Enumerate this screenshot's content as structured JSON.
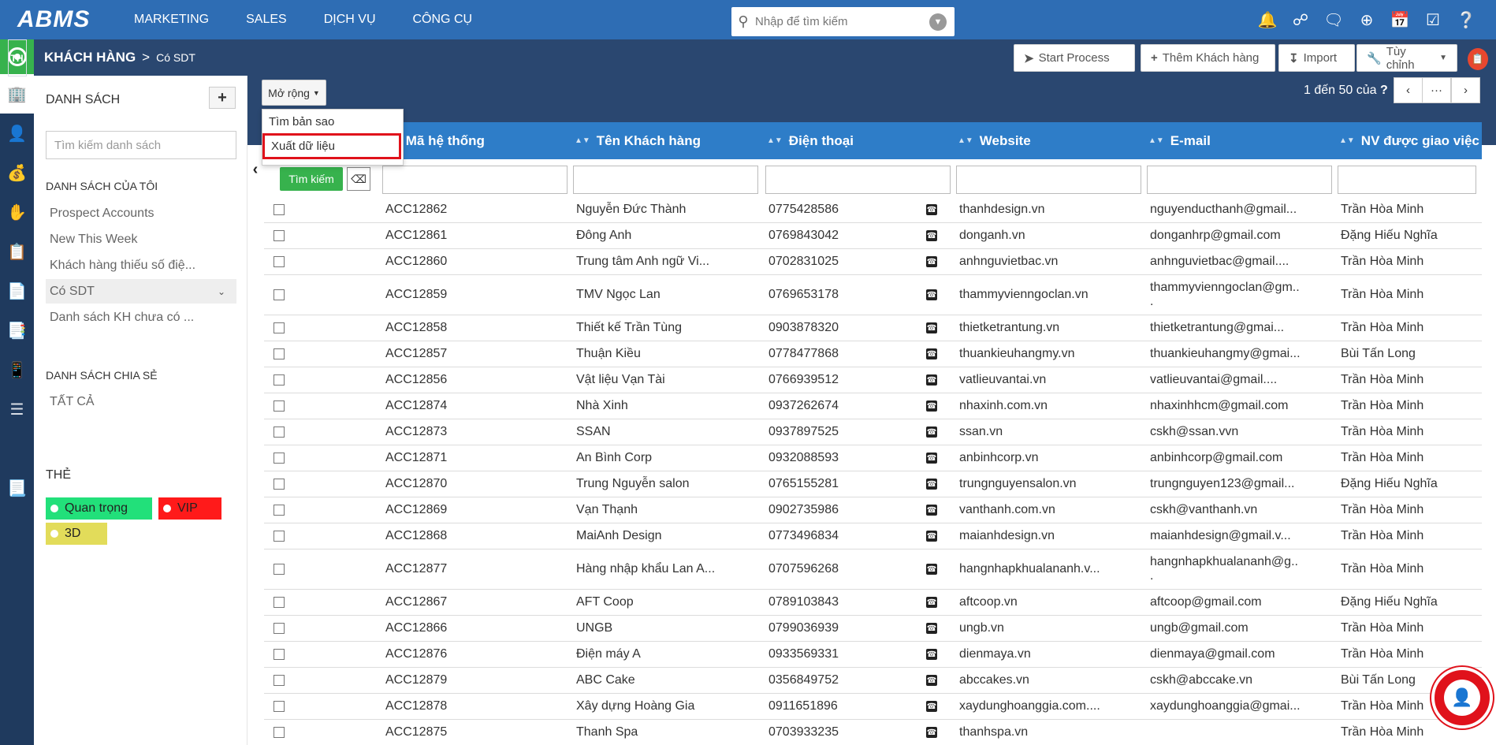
{
  "app": {
    "logo": "ABMS"
  },
  "nav": [
    "MARKETING",
    "SALES",
    "DỊCH VỤ",
    "CÔNG CỤ"
  ],
  "search": {
    "placeholder": "Nhập để tìm kiếm"
  },
  "top_icons": [
    "bell-icon",
    "network-icon",
    "chat-icon",
    "plus-icon",
    "calendar-icon",
    "check-square-icon",
    "help-icon"
  ],
  "breadcrumb": {
    "section": "KHÁCH HÀNG",
    "separator": ">",
    "current": "Có SDT"
  },
  "header_buttons": {
    "start_process": "Start Process",
    "add_customer": "Thêm Khách hàng",
    "import": "Import",
    "customize": "Tùy chỉnh"
  },
  "list_pane": {
    "title": "DANH SÁCH",
    "add": "+",
    "search_placeholder": "Tìm kiếm danh sách",
    "my_lists_heading": "DANH SÁCH CỦA TÔI",
    "my_lists": [
      "Prospect Accounts",
      "New This Week",
      "Khách hàng thiếu số điệ...",
      "Có SDT",
      "Danh sách KH chưa có ..."
    ],
    "shared_heading": "DANH SÁCH CHIA SẺ",
    "shared": [
      "TẤT CẢ"
    ],
    "tags_heading": "THẺ",
    "tags": [
      {
        "label": "Quan trọng",
        "color": "#22e07a"
      },
      {
        "label": "VIP",
        "color": "#ff1a1a"
      },
      {
        "label": "3D",
        "color": "#e2dc5a"
      }
    ]
  },
  "toolbar": {
    "expand": "Mở rộng",
    "dropdown": [
      "Tìm bản sao",
      "Xuất dữ liệu"
    ],
    "pager_text": "1 đến 50  của",
    "pager_q": "?",
    "pager_more": "···"
  },
  "table": {
    "headers": [
      "Mã hệ thống",
      "Tên Khách hàng",
      "Điện thoại",
      "Website",
      "E-mail",
      "NV được giao việc"
    ],
    "search_button": "Tìm kiếm",
    "rows": [
      {
        "code": "ACC12862",
        "name": "Nguyễn Đức Thành",
        "phone": "0775428586",
        "web": "thanhdesign.vn",
        "email": "nguyenducthanh@gmail...",
        "owner": "Trần Hòa Minh"
      },
      {
        "code": "ACC12861",
        "name": "Đông Anh",
        "phone": "0769843042",
        "web": "donganh.vn",
        "email": "donganhrp@gmail.com",
        "owner": "Đặng Hiếu Nghĩa"
      },
      {
        "code": "ACC12860",
        "name": "Trung tâm Anh ngữ Vi...",
        "phone": "0702831025",
        "web": "anhnguvietbac.vn",
        "email": "anhnguvietbac@gmail....",
        "owner": "Trần Hòa Minh"
      },
      {
        "code": "ACC12859",
        "name": "TMV Ngọc Lan",
        "phone": "0769653178",
        "web": "thammyvienngoclan.vn",
        "email": "thammyvienngoclan@gm..",
        "email2": ".",
        "owner": "Trần Hòa Minh"
      },
      {
        "code": "ACC12858",
        "name": "Thiết kế Trần Tùng",
        "phone": "0903878320",
        "web": "thietketrantung.vn",
        "email": "thietketrantung@gmai...",
        "owner": "Trần Hòa Minh"
      },
      {
        "code": "ACC12857",
        "name": "Thuận Kiều",
        "phone": "0778477868",
        "web": "thuankieuhangmy.vn",
        "email": "thuankieuhangmy@gmai...",
        "owner": "Bùi Tấn Long"
      },
      {
        "code": "ACC12856",
        "name": "Vật liệu Vạn Tài",
        "phone": "0766939512",
        "web": "vatlieuvantai.vn",
        "email": "vatlieuvantai@gmail....",
        "owner": "Trần Hòa Minh"
      },
      {
        "code": "ACC12874",
        "name": "Nhà Xinh",
        "phone": "0937262674",
        "web": "nhaxinh.com.vn",
        "email": "nhaxinhhcm@gmail.com",
        "owner": "Trần Hòa Minh"
      },
      {
        "code": "ACC12873",
        "name": "SSAN",
        "phone": "0937897525",
        "web": "ssan.vn",
        "email": "cskh@ssan.vvn",
        "owner": "Trần Hòa Minh"
      },
      {
        "code": "ACC12871",
        "name": "An Bình Corp",
        "phone": "0932088593",
        "web": "anbinhcorp.vn",
        "email": "anbinhcorp@gmail.com",
        "owner": "Trần Hòa Minh"
      },
      {
        "code": "ACC12870",
        "name": "Trung Nguyễn salon",
        "phone": "0765155281",
        "web": "trungnguyensalon.vn",
        "email": "trungnguyen123@gmail...",
        "owner": "Đặng Hiếu Nghĩa"
      },
      {
        "code": "ACC12869",
        "name": "Vạn Thạnh",
        "phone": "0902735986",
        "web": "vanthanh.com.vn",
        "email": "cskh@vanthanh.vn",
        "owner": "Trần Hòa Minh"
      },
      {
        "code": "ACC12868",
        "name": "MaiAnh Design",
        "phone": "0773496834",
        "web": "maianhdesign.vn",
        "email": "maianhdesign@gmail.v...",
        "owner": "Trần Hòa Minh"
      },
      {
        "code": "ACC12877",
        "name": "Hàng nhập khẩu Lan A...",
        "phone": "0707596268",
        "web": "hangnhapkhualananh.v...",
        "email": "hangnhapkhualananh@g..",
        "email2": ".",
        "owner": "Trần Hòa Minh"
      },
      {
        "code": "ACC12867",
        "name": "AFT Coop",
        "phone": "0789103843",
        "web": "aftcoop.vn",
        "email": "aftcoop@gmail.com",
        "owner": "Đặng Hiếu Nghĩa"
      },
      {
        "code": "ACC12866",
        "name": "UNGB",
        "phone": "0799036939",
        "web": "ungb.vn",
        "email": "ungb@gmail.com",
        "owner": "Trần Hòa Minh"
      },
      {
        "code": "ACC12876",
        "name": "Điện máy A",
        "phone": "0933569331",
        "web": "dienmaya.vn",
        "email": "dienmaya@gmail.com",
        "owner": "Trần Hòa Minh"
      },
      {
        "code": "ACC12879",
        "name": "ABC Cake",
        "phone": "0356849752",
        "web": "abccakes.vn",
        "email": "cskh@abccake.vn",
        "owner": "Bùi Tấn Long"
      },
      {
        "code": "ACC12878",
        "name": "Xây dựng Hoàng Gia",
        "phone": "0911651896",
        "web": "xaydunghoanggia.com....",
        "email": "xaydunghoanggia@gmai...",
        "owner": "Trần Hòa Minh"
      },
      {
        "code": "ACC12875",
        "name": "Thanh Spa",
        "phone": "0703933235",
        "web": "thanhspa.vn",
        "email": "",
        "owner": "Trần Hòa Minh"
      }
    ]
  },
  "rail": {
    "th_label": "TH"
  },
  "colors": {
    "topbar": "#2e6db4",
    "band": "#2a4770",
    "rail": "#1f3a5e",
    "table_header": "#2e7dc8",
    "accent_green": "#37b24d",
    "highlight_red": "#e0121b"
  }
}
